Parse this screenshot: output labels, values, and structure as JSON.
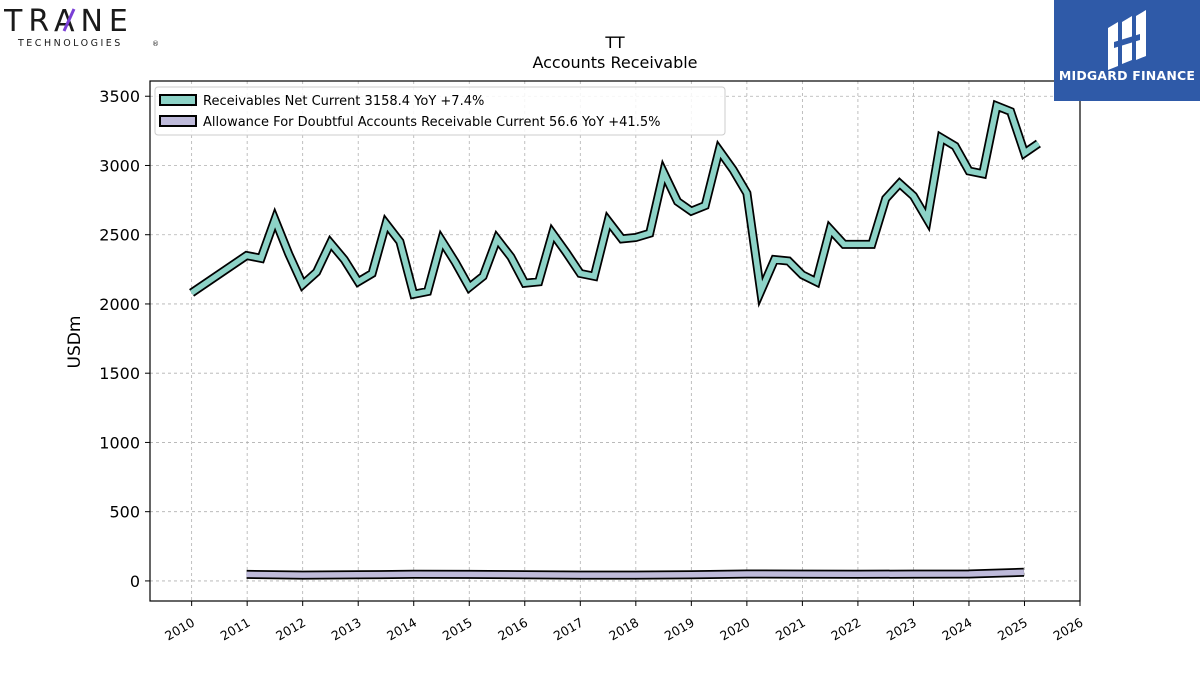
{
  "branding": {
    "company_logo_text": "TRANE",
    "company_logo_subtext": "TECHNOLOGIES",
    "company_logo_mark": "®",
    "publisher_logo_text": "MIDGARD FINANCE",
    "publisher_color": "#2f5aa8",
    "company_color": "#1a1a1a",
    "company_accent": "#7a3fd6"
  },
  "chart_data": {
    "type": "line",
    "title": "TT",
    "subtitle": "Accounts Receivable",
    "xlabel": "",
    "ylabel": "USDm",
    "xlim": [
      2009.25,
      2026.0
    ],
    "ylim": [
      -145,
      3610
    ],
    "x_ticks": [
      "2010",
      "2011",
      "2012",
      "2013",
      "2014",
      "2015",
      "2016",
      "2017",
      "2018",
      "2019",
      "2020",
      "2021",
      "2022",
      "2023",
      "2024",
      "2025",
      "2026"
    ],
    "y_ticks": [
      "0",
      "500",
      "1000",
      "1500",
      "2000",
      "2500",
      "3000",
      "3500"
    ],
    "grid": true,
    "legend_position": "top-left",
    "series": [
      {
        "name": "Receivables Net Current",
        "legend_label": "Receivables Net Current  3158.4 YoY +7.4%",
        "color": "#8dd3c7",
        "points": [
          [
            2010.0,
            2080
          ],
          [
            2010.99,
            2350
          ],
          [
            2011.25,
            2330
          ],
          [
            2011.5,
            2610
          ],
          [
            2011.75,
            2360
          ],
          [
            2012.0,
            2140
          ],
          [
            2012.25,
            2230
          ],
          [
            2012.5,
            2440
          ],
          [
            2012.75,
            2320
          ],
          [
            2013.0,
            2160
          ],
          [
            2013.25,
            2220
          ],
          [
            2013.5,
            2580
          ],
          [
            2013.75,
            2450
          ],
          [
            2014.0,
            2070
          ],
          [
            2014.25,
            2090
          ],
          [
            2014.5,
            2460
          ],
          [
            2014.75,
            2300
          ],
          [
            2015.0,
            2120
          ],
          [
            2015.25,
            2200
          ],
          [
            2015.5,
            2470
          ],
          [
            2015.75,
            2340
          ],
          [
            2016.0,
            2150
          ],
          [
            2016.25,
            2160
          ],
          [
            2016.5,
            2510
          ],
          [
            2016.75,
            2370
          ],
          [
            2017.0,
            2220
          ],
          [
            2017.25,
            2200
          ],
          [
            2017.5,
            2600
          ],
          [
            2017.75,
            2470
          ],
          [
            2018.0,
            2480
          ],
          [
            2018.25,
            2510
          ],
          [
            2018.5,
            2950
          ],
          [
            2018.75,
            2740
          ],
          [
            2019.0,
            2670
          ],
          [
            2019.25,
            2710
          ],
          [
            2019.5,
            3110
          ],
          [
            2019.75,
            2970
          ],
          [
            2020.0,
            2800
          ],
          [
            2020.25,
            2090
          ],
          [
            2020.5,
            2320
          ],
          [
            2020.75,
            2310
          ],
          [
            2021.0,
            2210
          ],
          [
            2021.25,
            2160
          ],
          [
            2021.5,
            2540
          ],
          [
            2021.75,
            2430
          ],
          [
            2022.0,
            2430
          ],
          [
            2022.25,
            2430
          ],
          [
            2022.5,
            2760
          ],
          [
            2022.75,
            2870
          ],
          [
            2023.0,
            2780
          ],
          [
            2023.25,
            2610
          ],
          [
            2023.5,
            3200
          ],
          [
            2023.75,
            3140
          ],
          [
            2024.0,
            2960
          ],
          [
            2024.25,
            2940
          ],
          [
            2024.5,
            3430
          ],
          [
            2024.75,
            3390
          ],
          [
            2025.0,
            3090
          ],
          [
            2025.25,
            3158.4
          ]
        ]
      },
      {
        "name": "Allowance For Doubtful Accounts Receivable Current",
        "legend_label": "Allowance For Doubtful Accounts Receivable Current  56.6 YoY +41.5%",
        "color": "#bebada",
        "points": [
          [
            2010.99,
            47
          ],
          [
            2012.0,
            42
          ],
          [
            2013.0,
            44
          ],
          [
            2014.0,
            48
          ],
          [
            2015.0,
            47
          ],
          [
            2016.0,
            44
          ],
          [
            2017.0,
            42
          ],
          [
            2018.0,
            42
          ],
          [
            2019.0,
            45
          ],
          [
            2020.0,
            50
          ],
          [
            2021.0,
            49
          ],
          [
            2022.0,
            48
          ],
          [
            2023.0,
            49
          ],
          [
            2024.0,
            50
          ],
          [
            2024.99,
            62
          ]
        ]
      }
    ]
  }
}
